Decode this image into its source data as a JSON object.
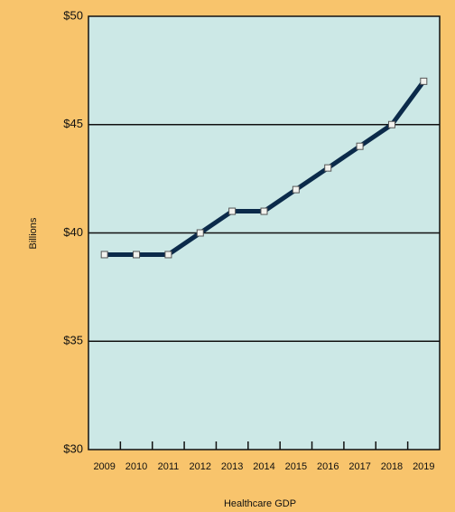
{
  "chart_data": {
    "type": "line",
    "x_label": "Healthcare GDP",
    "y_label": "Billions",
    "categories": [
      "2009",
      "2010",
      "2011",
      "2012",
      "2013",
      "2014",
      "2015",
      "2016",
      "2017",
      "2018",
      "2019"
    ],
    "series": [
      {
        "color": "#0b2a4a",
        "values": [
          39,
          39,
          39,
          40,
          41,
          41,
          42,
          43,
          44,
          45,
          47
        ]
      }
    ],
    "ylim": [
      30,
      50
    ],
    "yticks": [
      {
        "value": 30,
        "label": "$30"
      },
      {
        "value": 35,
        "label": "$35"
      },
      {
        "value": 40,
        "label": "$40"
      },
      {
        "value": 45,
        "label": "$45"
      },
      {
        "value": 50,
        "label": "$50"
      }
    ],
    "grid": true
  }
}
